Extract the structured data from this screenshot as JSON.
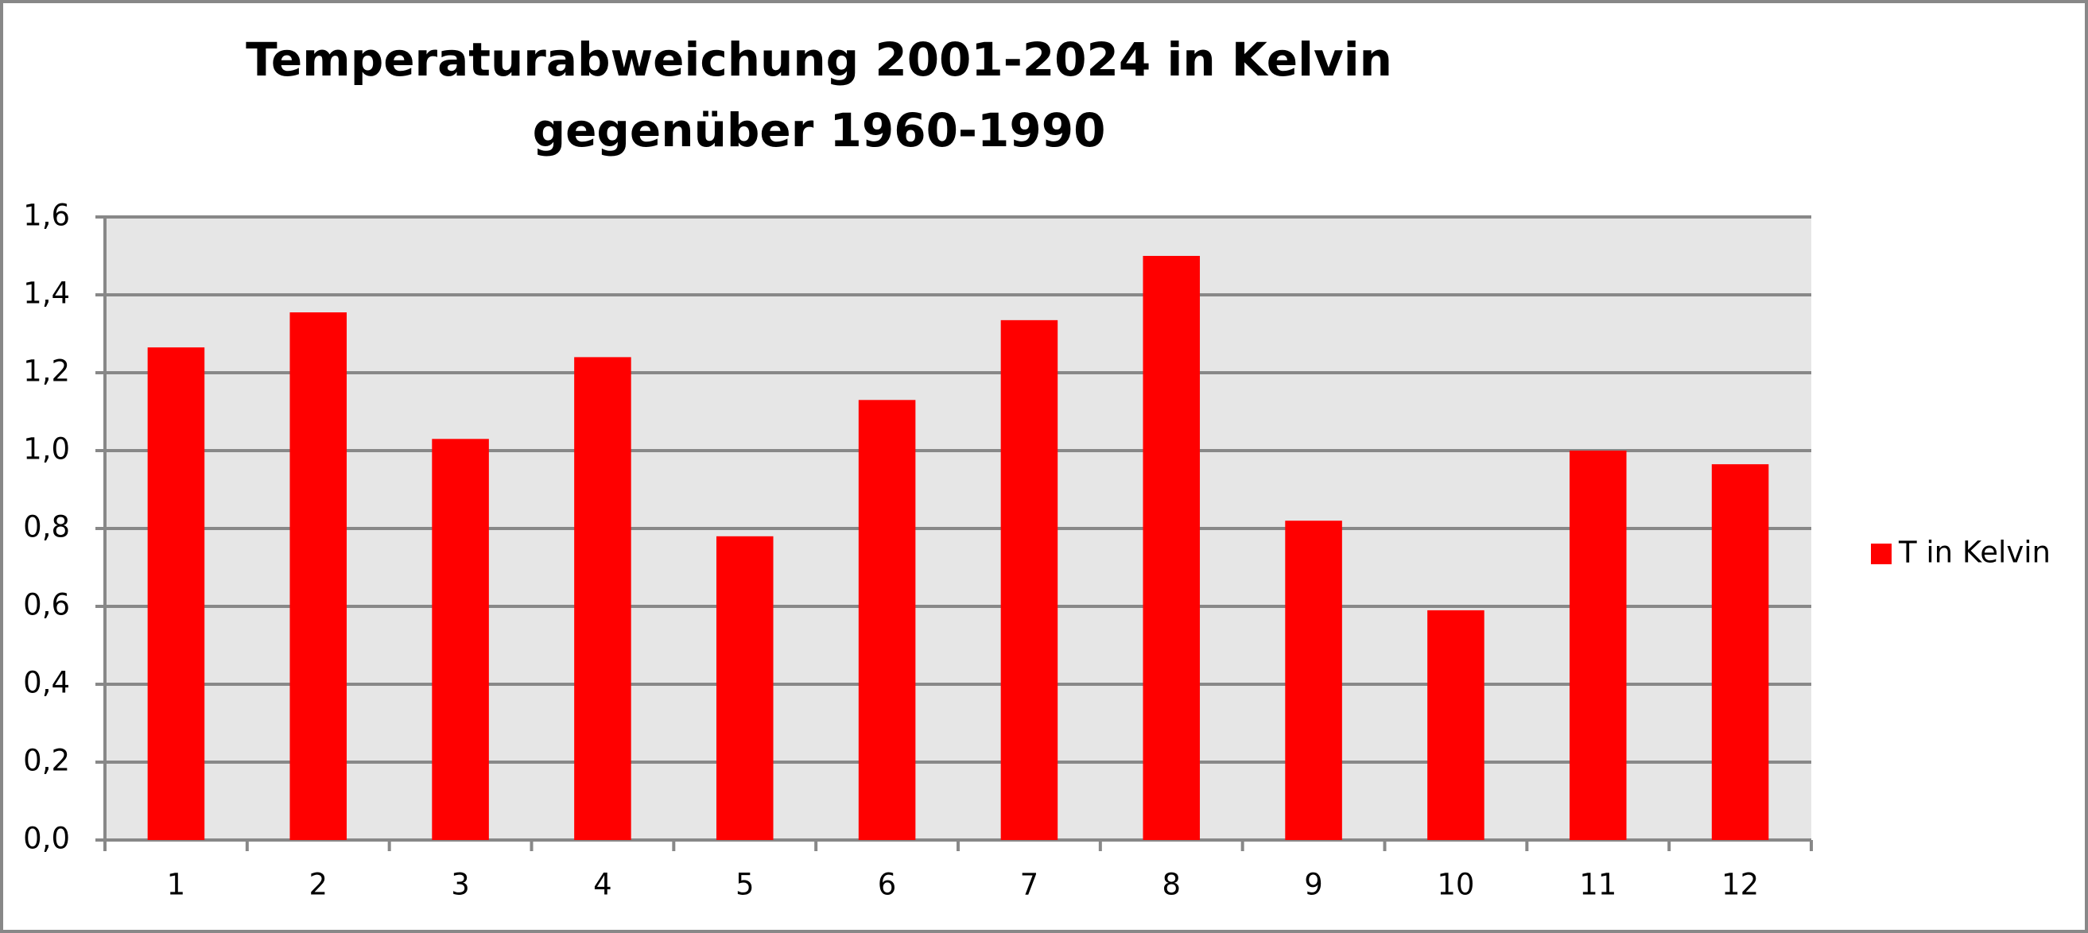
{
  "chart_data": {
    "type": "bar",
    "title": [
      "Temperaturabweichung 2001-2024 in Kelvin",
      "gegenüber 1960-1990"
    ],
    "categories": [
      "1",
      "2",
      "3",
      "4",
      "5",
      "6",
      "7",
      "8",
      "9",
      "10",
      "11",
      "12"
    ],
    "series": [
      {
        "name": "T in Kelvin",
        "color": "#ff0000",
        "values": [
          1.265,
          1.355,
          1.03,
          1.24,
          0.78,
          1.13,
          1.335,
          1.5,
          0.82,
          0.59,
          1.0,
          0.965
        ]
      }
    ],
    "ylim": [
      0,
      1.6
    ],
    "yticks": [
      {
        "value": 0,
        "label": "0,0"
      },
      {
        "value": 0.2,
        "label": "0,2"
      },
      {
        "value": 0.4,
        "label": "0,4"
      },
      {
        "value": 0.6,
        "label": "0,6"
      },
      {
        "value": 0.8,
        "label": "0,8"
      },
      {
        "value": 1.0,
        "label": "1,0"
      },
      {
        "value": 1.2,
        "label": "1,2"
      },
      {
        "value": 1.4,
        "label": "1,4"
      },
      {
        "value": 1.6,
        "label": "1,6"
      }
    ],
    "grid": true,
    "legend": "right"
  }
}
